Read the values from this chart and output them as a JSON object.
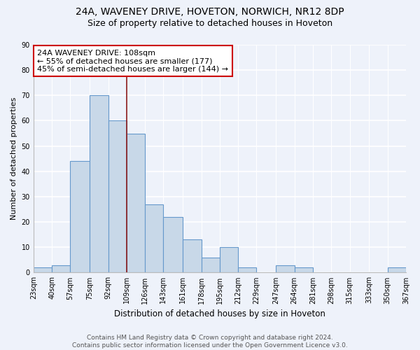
{
  "title1": "24A, WAVENEY DRIVE, HOVETON, NORWICH, NR12 8DP",
  "title2": "Size of property relative to detached houses in Hoveton",
  "xlabel": "Distribution of detached houses by size in Hoveton",
  "ylabel": "Number of detached properties",
  "bins": [
    23,
    40,
    57,
    75,
    92,
    109,
    126,
    143,
    161,
    178,
    195,
    212,
    229,
    247,
    264,
    281,
    298,
    315,
    333,
    350,
    367
  ],
  "counts": [
    2,
    3,
    44,
    70,
    60,
    55,
    27,
    22,
    13,
    6,
    10,
    2,
    0,
    3,
    2,
    0,
    0,
    0,
    0,
    2
  ],
  "bar_color": "#c8d8e8",
  "bar_edge_color": "#6699cc",
  "reference_line_x": 109,
  "reference_line_color": "#8b1a1a",
  "annotation_text": "24A WAVENEY DRIVE: 108sqm\n← 55% of detached houses are smaller (177)\n45% of semi-detached houses are larger (144) →",
  "annotation_box_color": "white",
  "annotation_box_edge_color": "#cc0000",
  "ylim": [
    0,
    90
  ],
  "yticks": [
    0,
    10,
    20,
    30,
    40,
    50,
    60,
    70,
    80,
    90
  ],
  "tick_labels": [
    "23sqm",
    "40sqm",
    "57sqm",
    "75sqm",
    "92sqm",
    "109sqm",
    "126sqm",
    "143sqm",
    "161sqm",
    "178sqm",
    "195sqm",
    "212sqm",
    "229sqm",
    "247sqm",
    "264sqm",
    "281sqm",
    "298sqm",
    "315sqm",
    "333sqm",
    "350sqm",
    "367sqm"
  ],
  "footer_text": "Contains HM Land Registry data © Crown copyright and database right 2024.\nContains public sector information licensed under the Open Government Licence v3.0.",
  "background_color": "#eef2fa",
  "grid_color": "white",
  "title1_fontsize": 10,
  "title2_fontsize": 9,
  "xlabel_fontsize": 8.5,
  "ylabel_fontsize": 8,
  "tick_fontsize": 7,
  "annotation_fontsize": 8,
  "footer_fontsize": 6.5
}
